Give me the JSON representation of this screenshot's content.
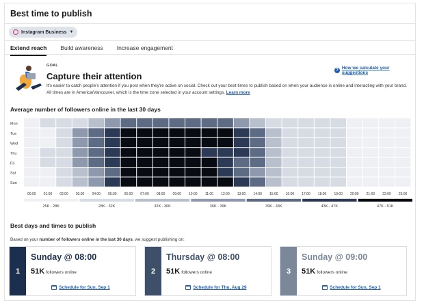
{
  "header": {
    "title": "Best time to publish"
  },
  "account": {
    "name": "Instagram Business",
    "icon": "instagram-icon"
  },
  "tabs": [
    {
      "label": "Extend reach",
      "active": true
    },
    {
      "label": "Build awareness",
      "active": false
    },
    {
      "label": "Increase engagement",
      "active": false
    }
  ],
  "goal": {
    "label": "GOAL",
    "headline": "Capture their attention",
    "description": "It's easier to catch people's attention if you post when they're active on social. Check out your best times to publish based on when your audience is online and interacting with your brand. All times are in America/Vancouver, which is the time zone selected in your account settings.",
    "learn_more": "Learn more",
    "how_link": "How we calculate your suggestions"
  },
  "heatmap_section": {
    "title": "Average number of followers online in the last 30 days"
  },
  "chart_data": {
    "type": "heatmap",
    "days": [
      "Mon",
      "Tue",
      "Wed",
      "Thu",
      "Fri",
      "Sat",
      "Sun"
    ],
    "hours": [
      "00:00",
      "01:00",
      "02:00",
      "03:00",
      "04:00",
      "05:00",
      "06:00",
      "07:00",
      "08:00",
      "09:00",
      "10:00",
      "11:00",
      "12:00",
      "13:00",
      "14:00",
      "15:00",
      "16:00",
      "17:00",
      "18:00",
      "19:00",
      "20:00",
      "21:00",
      "22:00",
      "23:00"
    ],
    "levels": [
      [
        0,
        1,
        1,
        1,
        2,
        3,
        4,
        4,
        4,
        4,
        4,
        4,
        4,
        3,
        2,
        1,
        1,
        1,
        1,
        1,
        0,
        0,
        0,
        0
      ],
      [
        0,
        0,
        1,
        3,
        4,
        5,
        6,
        6,
        6,
        6,
        6,
        6,
        6,
        5,
        4,
        2,
        1,
        1,
        1,
        1,
        0,
        0,
        0,
        0
      ],
      [
        0,
        0,
        1,
        3,
        4,
        5,
        6,
        6,
        6,
        6,
        6,
        6,
        6,
        5,
        4,
        2,
        1,
        1,
        1,
        1,
        0,
        0,
        0,
        0
      ],
      [
        0,
        1,
        1,
        3,
        4,
        5,
        6,
        6,
        6,
        6,
        6,
        5,
        5,
        5,
        4,
        2,
        1,
        1,
        1,
        1,
        0,
        0,
        0,
        0
      ],
      [
        0,
        1,
        1,
        3,
        4,
        5,
        6,
        6,
        6,
        6,
        6,
        6,
        5,
        4,
        4,
        2,
        1,
        1,
        1,
        1,
        0,
        0,
        0,
        0
      ],
      [
        0,
        0,
        1,
        2,
        3,
        4,
        6,
        6,
        6,
        6,
        6,
        6,
        5,
        4,
        3,
        2,
        1,
        1,
        1,
        1,
        0,
        0,
        0,
        0
      ],
      [
        0,
        0,
        1,
        2,
        3,
        5,
        6,
        6,
        6,
        6,
        6,
        6,
        6,
        5,
        4,
        2,
        1,
        1,
        1,
        1,
        0,
        0,
        0,
        0
      ]
    ],
    "legend": [
      "25K - 28K",
      "28K - 32K",
      "32K - 36K",
      "36K - 39K",
      "39K - 43K",
      "43K - 47K",
      "47K - 51K"
    ],
    "colors": [
      "#eef0f3",
      "#d7dce4",
      "#b8c0cd",
      "#8e99ad",
      "#5d6b85",
      "#2d3a55",
      "#090b12"
    ]
  },
  "best_days": {
    "title": "Best days and times to publish",
    "subtitle_prefix": "Based on your ",
    "subtitle_bold": "number of followers online in the last 30 days",
    "subtitle_suffix": ", we suggest publishing on:",
    "cards": [
      {
        "rank": "1",
        "when": "Sunday @ 08:00",
        "value": "51K",
        "unit": "followers online",
        "schedule": "Schedule for Sun, Sep 1",
        "color": "#1d2f4f"
      },
      {
        "rank": "2",
        "when": "Thursday @ 08:00",
        "value": "51K",
        "unit": "followers online",
        "schedule": "Schedule for Thu, Aug 29",
        "color": "#3e5069"
      },
      {
        "rank": "3",
        "when": "Sunday @ 09:00",
        "value": "51K",
        "unit": "followers online",
        "schedule": "Schedule for Sun, Sep 1",
        "color": "#7b8899"
      }
    ]
  }
}
